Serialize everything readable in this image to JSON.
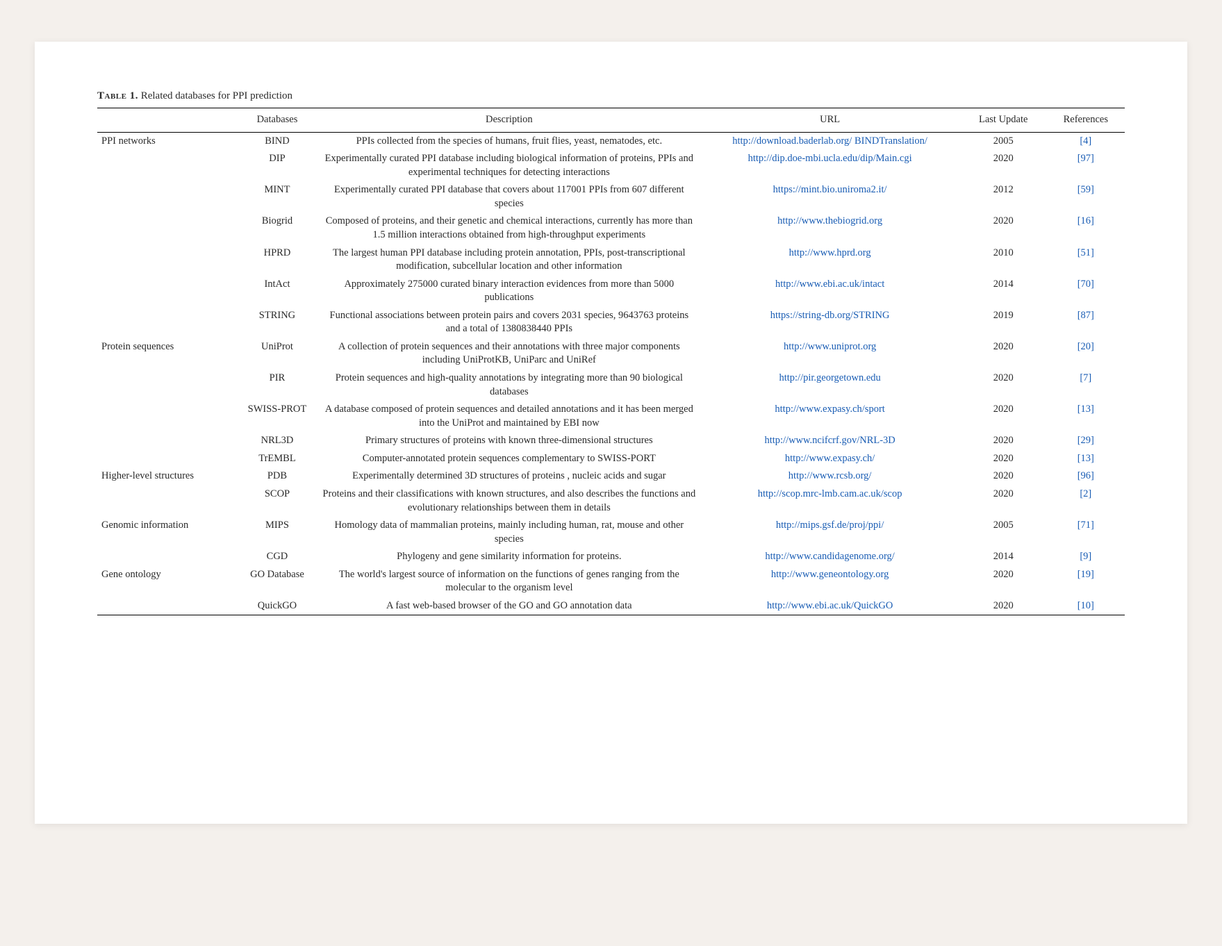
{
  "caption_label": "Table 1.",
  "caption_text": "Related databases for PPI prediction",
  "columns": [
    "",
    "Databases",
    "Description",
    "URL",
    "Last Update",
    "References"
  ],
  "rows": [
    {
      "category": "PPI networks",
      "db": "BIND",
      "desc": "PPIs collected from the species of humans, fruit flies, yeast, nematodes, etc.",
      "url": "http://download.baderlab.org/ BINDTranslation/",
      "lu": "2005",
      "ref": "[4]"
    },
    {
      "category": "",
      "db": "DIP",
      "desc": "Experimentally curated PPI database including biological information of proteins, PPIs and experimental techniques for detecting interactions",
      "url": "http://dip.doe-mbi.ucla.edu/dip/Main.cgi",
      "lu": "2020",
      "ref": "[97]"
    },
    {
      "category": "",
      "db": "MINT",
      "desc": "Experimentally curated PPI database that covers about 117001 PPIs from 607 different species",
      "url": "https://mint.bio.uniroma2.it/",
      "lu": "2012",
      "ref": "[59]"
    },
    {
      "category": "",
      "db": "Biogrid",
      "desc": "Composed of proteins, and their genetic and chemical interactions, currently has more than 1.5 million interactions obtained from high-throughput experiments",
      "url": "http://www.thebiogrid.org",
      "lu": "2020",
      "ref": "[16]"
    },
    {
      "category": "",
      "db": "HPRD",
      "desc": "The largest human PPI database including protein annotation, PPIs, post-transcriptional modification, subcellular location and other information",
      "url": "http://www.hprd.org",
      "lu": "2010",
      "ref": "[51]"
    },
    {
      "category": "",
      "db": "IntAct",
      "desc": "Approximately 275000 curated binary interaction evidences from more than 5000 publications",
      "url": "http://www.ebi.ac.uk/intact",
      "lu": "2014",
      "ref": "[70]"
    },
    {
      "category": "",
      "db": "STRING",
      "desc": "Functional associations between protein pairs and covers 2031 species, 9643763 proteins and a total of 1380838440 PPIs",
      "url": "https://string-db.org/STRING",
      "lu": "2019",
      "ref": "[87]"
    },
    {
      "category": "Protein sequences",
      "db": "UniProt",
      "desc": "A collection of protein sequences and their annotations with three major components including UniProtKB, UniParc and UniRef",
      "url": "http://www.uniprot.org",
      "lu": "2020",
      "ref": "[20]"
    },
    {
      "category": "",
      "db": "PIR",
      "desc": "Protein sequences and high-quality annotations by integrating more than 90 biological databases",
      "url": "http://pir.georgetown.edu",
      "lu": "2020",
      "ref": "[7]"
    },
    {
      "category": "",
      "db": "SWISS-PROT",
      "desc": "A database composed of protein sequences and detailed annotations and it has been merged into the UniProt and maintained by EBI now",
      "url": "http://www.expasy.ch/sport",
      "lu": "2020",
      "ref": "[13]"
    },
    {
      "category": "",
      "db": "NRL3D",
      "desc": "Primary structures of proteins with known three-dimensional structures",
      "url": "http://www.ncifcrf.gov/NRL-3D",
      "lu": "2020",
      "ref": "[29]"
    },
    {
      "category": "",
      "db": "TrEMBL",
      "desc": "Computer-annotated protein sequences complementary to SWISS-PORT",
      "url": "http://www.expasy.ch/",
      "lu": "2020",
      "ref": "[13]"
    },
    {
      "category": "Higher-level structures",
      "db": "PDB",
      "desc": "Experimentally determined 3D structures of proteins , nucleic acids and sugar",
      "url": "http://www.rcsb.org/",
      "lu": "2020",
      "ref": "[96]"
    },
    {
      "category": "",
      "db": "SCOP",
      "desc": "Proteins and their classifications with known structures, and also describes the functions and evolutionary relationships between them in details",
      "url": "http://scop.mrc-lmb.cam.ac.uk/scop",
      "lu": "2020",
      "ref": "[2]"
    },
    {
      "category": "Genomic information",
      "db": "MIPS",
      "desc": "Homology data of mammalian proteins, mainly including human, rat, mouse and other species",
      "url": "http://mips.gsf.de/proj/ppi/",
      "lu": "2005",
      "ref": "[71]"
    },
    {
      "category": "",
      "db": "CGD",
      "desc": "Phylogeny and gene similarity information for proteins.",
      "url": "http://www.candidagenome.org/",
      "lu": "2014",
      "ref": "[9]"
    },
    {
      "category": "Gene ontology",
      "db": "GO Database",
      "desc": "The world's largest source of information on the functions of genes ranging from the molecular to the organism level",
      "url": "http://www.geneontology.org",
      "lu": "2020",
      "ref": "[19]"
    },
    {
      "category": "",
      "db": "QuickGO",
      "desc": "A fast web-based browser of the GO and GO annotation data",
      "url": "http://www.ebi.ac.uk/QuickGO",
      "lu": "2020",
      "ref": "[10]"
    }
  ]
}
